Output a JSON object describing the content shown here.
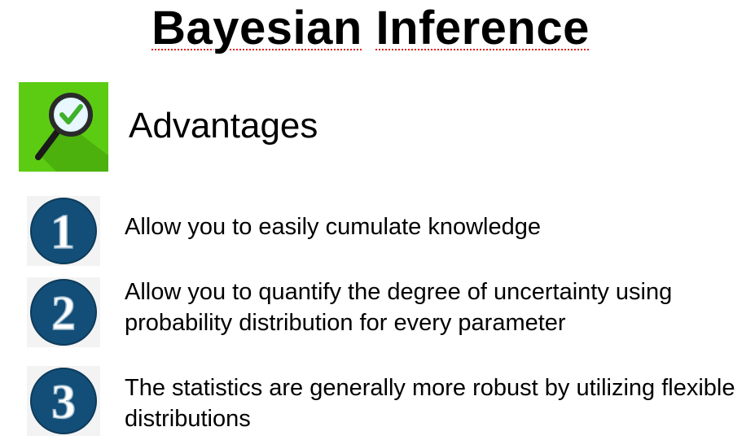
{
  "slide": {
    "title_part1": "Bayesian",
    "title_part2": "Inference",
    "section_icon": "magnifier-check-icon",
    "section_icon_bg": "#5ccc12",
    "section_label": "Advantages",
    "number_badge_color": "#124e78",
    "items": [
      {
        "number": "1",
        "text": "Allow you to easily cumulate knowledge"
      },
      {
        "number": "2",
        "text": "Allow you to quantify the degree of uncertainty using probability distribution for every parameter"
      },
      {
        "number": "3",
        "text": "The statistics are generally more robust by utilizing flexible distributions"
      }
    ]
  }
}
